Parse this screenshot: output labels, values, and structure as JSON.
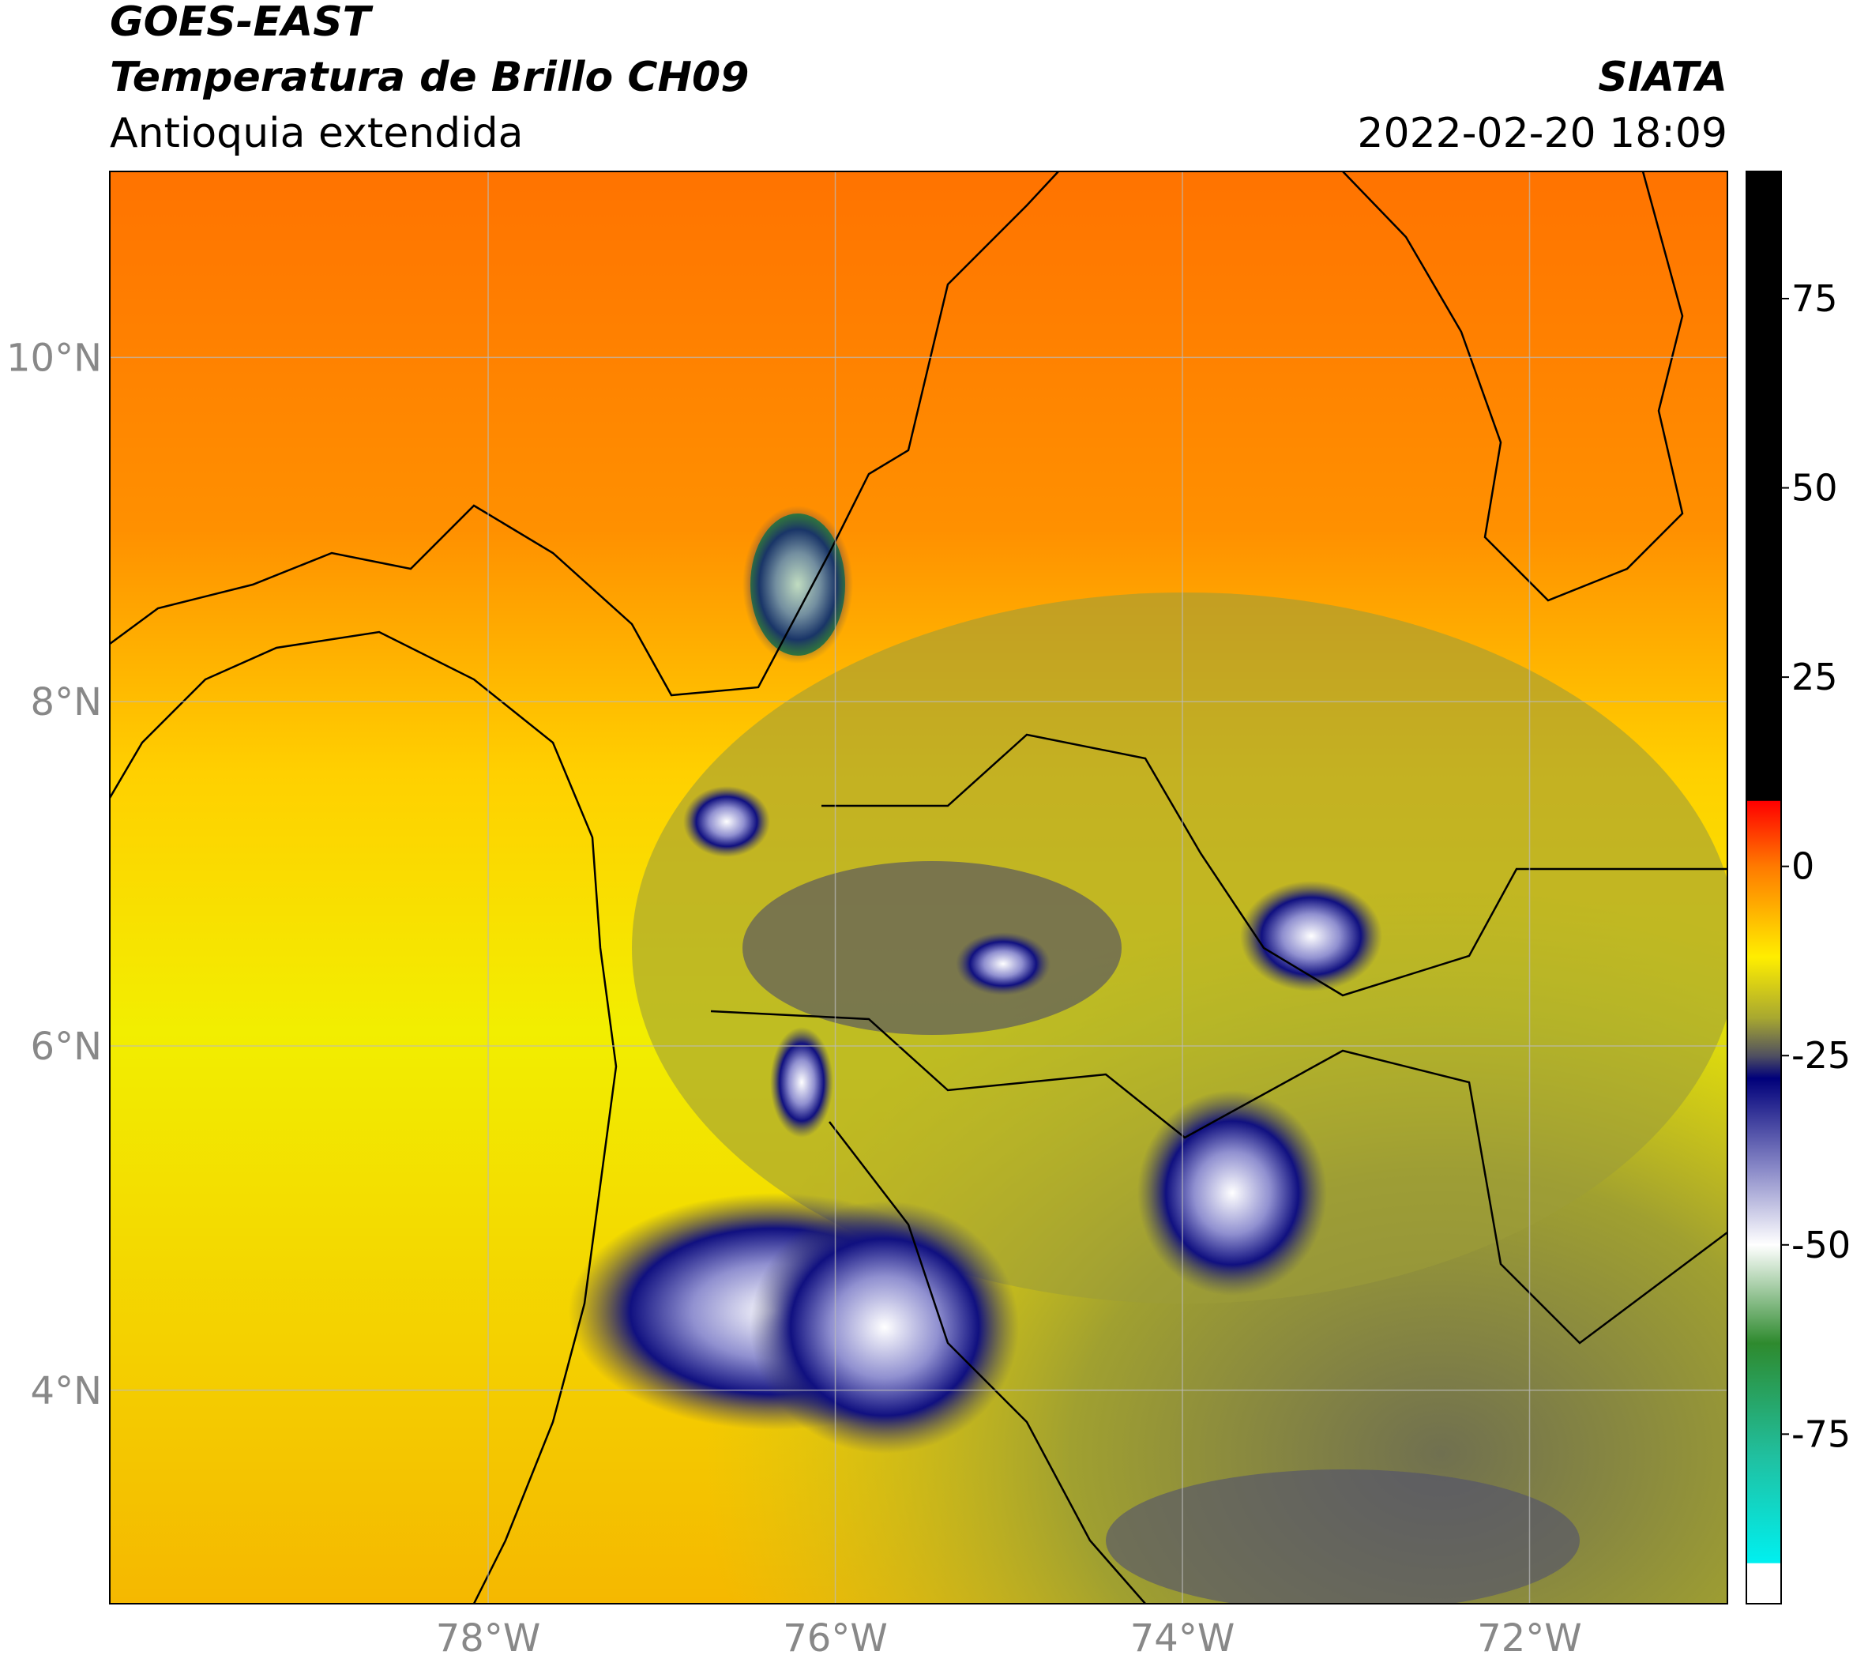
{
  "header": {
    "product": "GOES-EAST",
    "title": "Temperatura de Brillo CH09",
    "region": "Antioquia extendida",
    "source": "SIATA",
    "datetime": "2022-02-20 18:09"
  },
  "map": {
    "lat_range": [
      2.76,
      11.08
    ],
    "lon_range": [
      -80.18,
      -70.86
    ],
    "lat_ticks": [
      {
        "value": 10,
        "label": "10°N"
      },
      {
        "value": 8,
        "label": "8°N"
      },
      {
        "value": 6,
        "label": "6°N"
      },
      {
        "value": 4,
        "label": "4°N"
      }
    ],
    "lon_ticks": [
      {
        "value": -78,
        "label": "78°W"
      },
      {
        "value": -76,
        "label": "76°W"
      },
      {
        "value": -74,
        "label": "74°W"
      },
      {
        "value": -72,
        "label": "72°W"
      }
    ],
    "grid": true
  },
  "colorbar": {
    "range": [
      -97.4,
      91.8
    ],
    "ticks": [
      75,
      50,
      25,
      0,
      -25,
      -50,
      -75
    ],
    "stops": [
      {
        "value": 91.8,
        "color": "#000000"
      },
      {
        "value": 8.7,
        "color": "#000000"
      },
      {
        "value": 8.6,
        "color": "#ff0000"
      },
      {
        "value": 0,
        "color": "#ff7a00"
      },
      {
        "value": -12,
        "color": "#ffee00"
      },
      {
        "value": -20,
        "color": "#a8a830"
      },
      {
        "value": -25,
        "color": "#505060"
      },
      {
        "value": -28,
        "color": "#00007a"
      },
      {
        "value": -40,
        "color": "#8a8ac8"
      },
      {
        "value": -50,
        "color": "#ffffff"
      },
      {
        "value": -63,
        "color": "#2e8a2e"
      },
      {
        "value": -78,
        "color": "#20c0a0"
      },
      {
        "value": -92,
        "color": "#00f0f0"
      },
      {
        "value": -92.1,
        "color": "#ffffff"
      },
      {
        "value": -97.4,
        "color": "#ffffff"
      }
    ]
  }
}
